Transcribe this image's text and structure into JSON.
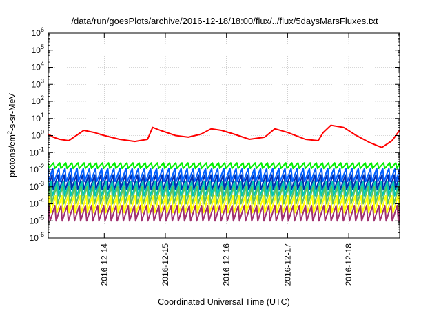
{
  "chart_data": {
    "type": "line",
    "title": "/data/run/goesPlots/archive/2016-12-18/18:00/flux/../flux/5daysMarsFluxes.txt",
    "xlabel": "Coordinated Universal Time (UTC)",
    "ylabel_parts": [
      "protons/cm",
      "2",
      "-s-sr-MeV"
    ],
    "y_scale": "log",
    "ylim": [
      1e-06,
      1000000.0
    ],
    "y_ticks": [
      {
        "base": "10",
        "exp": "-6"
      },
      {
        "base": "10",
        "exp": "-5"
      },
      {
        "base": "10",
        "exp": "-4"
      },
      {
        "base": "10",
        "exp": "-3"
      },
      {
        "base": "10",
        "exp": "-2"
      },
      {
        "base": "10",
        "exp": "-1"
      },
      {
        "base": "10",
        "exp": "0"
      },
      {
        "base": "10",
        "exp": "1"
      },
      {
        "base": "10",
        "exp": "2"
      },
      {
        "base": "10",
        "exp": "3"
      },
      {
        "base": "10",
        "exp": "4"
      },
      {
        "base": "10",
        "exp": "5"
      },
      {
        "base": "10",
        "exp": "6"
      }
    ],
    "x_range": [
      "2016-12-13T02:00",
      "2016-12-18T20:00"
    ],
    "x_ticks": [
      "2016-12-14",
      "2016-12-15",
      "2016-12-16",
      "2016-12-17",
      "2016-12-18"
    ],
    "grid": true,
    "sawtooth_period_hours": 2.4,
    "series": [
      {
        "color": "#ff0000",
        "sawtooth": false,
        "points": [
          [
            "2016-12-13T02:00",
            1.2
          ],
          [
            "2016-12-13T04:00",
            0.8
          ],
          [
            "2016-12-13T06:30",
            0.6
          ],
          [
            "2016-12-13T10:00",
            0.5
          ],
          [
            "2016-12-13T13:00",
            1.0
          ],
          [
            "2016-12-13T16:00",
            2.0
          ],
          [
            "2016-12-13T20:00",
            1.5
          ],
          [
            "2016-12-14T00:00",
            1.0
          ],
          [
            "2016-12-14T06:00",
            0.6
          ],
          [
            "2016-12-14T12:00",
            0.45
          ],
          [
            "2016-12-14T17:00",
            0.6
          ],
          [
            "2016-12-14T19:00",
            3.0
          ],
          [
            "2016-12-14T22:00",
            2.0
          ],
          [
            "2016-12-15T04:00",
            1.0
          ],
          [
            "2016-12-15T09:00",
            0.8
          ],
          [
            "2016-12-15T14:00",
            1.2
          ],
          [
            "2016-12-15T18:00",
            2.5
          ],
          [
            "2016-12-15T22:00",
            2.0
          ],
          [
            "2016-12-16T03:00",
            1.2
          ],
          [
            "2016-12-16T09:00",
            0.6
          ],
          [
            "2016-12-16T15:00",
            0.8
          ],
          [
            "2016-12-16T19:00",
            2.5
          ],
          [
            "2016-12-17T00:00",
            1.5
          ],
          [
            "2016-12-17T07:00",
            0.6
          ],
          [
            "2016-12-17T12:00",
            0.5
          ],
          [
            "2016-12-17T14:00",
            1.5
          ],
          [
            "2016-12-17T17:00",
            4.0
          ],
          [
            "2016-12-17T22:00",
            3.0
          ],
          [
            "2016-12-18T03:00",
            1.0
          ],
          [
            "2016-12-18T08:00",
            0.4
          ],
          [
            "2016-12-18T13:00",
            0.2
          ],
          [
            "2016-12-18T17:00",
            0.5
          ],
          [
            "2016-12-18T20:00",
            2.0
          ]
        ]
      },
      {
        "color": "#00ee00",
        "sawtooth": true,
        "peak": 0.025,
        "trough": 0.012
      },
      {
        "color": "#0060ff",
        "sawtooth": true,
        "peak": 0.012,
        "trough": 0.002
      },
      {
        "color": "#0030b0",
        "sawtooth": true,
        "peak": 0.005,
        "trough": 0.0007
      },
      {
        "color": "#00c8b4",
        "sawtooth": true,
        "peak": 0.002,
        "trough": 0.0003
      },
      {
        "color": "#60c060",
        "sawtooth": true,
        "peak": 0.001,
        "trough": 0.0001
      },
      {
        "color": "#ffff00",
        "sawtooth": true,
        "peak": 0.0003,
        "trough": 3e-05
      },
      {
        "color": "#a03070",
        "sawtooth": true,
        "peak": 8e-05,
        "trough": 1e-05
      }
    ]
  }
}
